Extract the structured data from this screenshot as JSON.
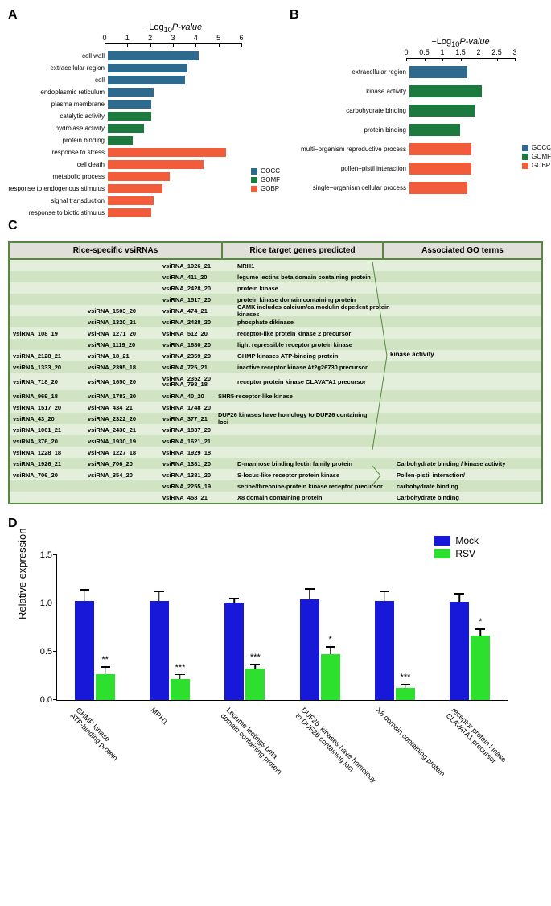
{
  "colors": {
    "gocc": "#2e6a8e",
    "gomf": "#1d7a3f",
    "gobp": "#f25c3b",
    "mock": "#1818d8",
    "rsv": "#2de02d",
    "table_border": "#578843",
    "table_bg1": "#e4efdb",
    "table_bg2": "#d0e3c3"
  },
  "panelA": {
    "label": "A",
    "axis_title": "−Log₁₀P-value",
    "xmax": 6,
    "xticks": [
      0,
      1,
      2,
      3,
      4,
      5,
      6
    ],
    "label_width": 120,
    "bar_area_width": 170,
    "bars": [
      {
        "label": "cell wall",
        "value": 4.0,
        "color": "#2e6a8e"
      },
      {
        "label": "extracellular region",
        "value": 3.5,
        "color": "#2e6a8e"
      },
      {
        "label": "cell",
        "value": 3.4,
        "color": "#2e6a8e"
      },
      {
        "label": "endoplasmic reticulum",
        "value": 2.0,
        "color": "#2e6a8e"
      },
      {
        "label": "plasma membrane",
        "value": 1.9,
        "color": "#2e6a8e"
      },
      {
        "label": "catalytic activity",
        "value": 1.9,
        "color": "#1d7a3f"
      },
      {
        "label": "hydrolase activity",
        "value": 1.6,
        "color": "#1d7a3f"
      },
      {
        "label": "protein binding",
        "value": 1.1,
        "color": "#1d7a3f"
      },
      {
        "label": "response to stress",
        "value": 5.2,
        "color": "#f25c3b"
      },
      {
        "label": "cell death",
        "value": 4.2,
        "color": "#f25c3b"
      },
      {
        "label": "metabolic process",
        "value": 2.7,
        "color": "#f25c3b"
      },
      {
        "label": "response to endogenous stimulus",
        "value": 2.4,
        "color": "#f25c3b"
      },
      {
        "label": "signal transduction",
        "value": 2.0,
        "color": "#f25c3b"
      },
      {
        "label": "response to biotic stimulus",
        "value": 1.9,
        "color": "#f25c3b"
      }
    ],
    "legend": [
      {
        "label": "GOCC",
        "color": "#2e6a8e"
      },
      {
        "label": "GOMF",
        "color": "#1d7a3f"
      },
      {
        "label": "GOBP",
        "color": "#f25c3b"
      }
    ]
  },
  "panelB": {
    "label": "B",
    "axis_title": "−Log₁₀P-value",
    "xmax": 3.0,
    "xticks": [
      0,
      0.5,
      1.0,
      1.5,
      2.0,
      2.5,
      3.0
    ],
    "label_width": 145,
    "bar_area_width": 135,
    "bars": [
      {
        "label": "extracellular region",
        "value": 1.6,
        "color": "#2e6a8e"
      },
      {
        "label": "kinase activity",
        "value": 2.0,
        "color": "#1d7a3f"
      },
      {
        "label": "carbohydrate binding",
        "value": 1.8,
        "color": "#1d7a3f"
      },
      {
        "label": "protein binding",
        "value": 1.4,
        "color": "#1d7a3f"
      },
      {
        "label": "multi−organism reproductive process",
        "value": 1.7,
        "color": "#f25c3b"
      },
      {
        "label": "pollen−pistil interaction",
        "value": 1.7,
        "color": "#f25c3b"
      },
      {
        "label": "single−organism cellular process",
        "value": 1.6,
        "color": "#f25c3b"
      }
    ],
    "legend": [
      {
        "label": "GOCC",
        "color": "#2e6a8e"
      },
      {
        "label": "GOMF",
        "color": "#1d7a3f"
      },
      {
        "label": "GOBP",
        "color": "#f25c3b"
      }
    ]
  },
  "panelC": {
    "label": "C",
    "headers": [
      "Rice-specific vsiRNAs",
      "Rice target genes predicted",
      "Associated GO terms"
    ],
    "col_widths": {
      "vs1": 85,
      "vs2": 85,
      "vs3": 85,
      "target": 190,
      "go": 200
    },
    "rows": [
      {
        "vs": [
          "",
          "",
          "vsiRNA_1926_21"
        ],
        "target": "MRH1"
      },
      {
        "vs": [
          "",
          "",
          "vsiRNA_411_20"
        ],
        "target": "legume lectins beta domain containing protein"
      },
      {
        "vs": [
          "",
          "",
          "vsiRNA_2428_20"
        ],
        "target": "protein kinase"
      },
      {
        "vs": [
          "",
          "",
          "vsiRNA_1517_20"
        ],
        "target": "protein kinase domain containing protein"
      },
      {
        "vs": [
          "",
          "vsiRNA_1503_20",
          "vsiRNA_474_21"
        ],
        "target": "CAMK includes calcium/calmodulin depedent protein kinases"
      },
      {
        "vs": [
          "",
          "vsiRNA_1320_21",
          "vsiRNA_2428_20"
        ],
        "target": "phosphate dikinase"
      },
      {
        "vs": [
          "vsiRNA_108_19",
          "vsiRNA_1271_20",
          "vsiRNA_512_20"
        ],
        "target": "receptor-like protein kinase 2 precursor"
      },
      {
        "vs": [
          "",
          "vsiRNA_1119_20",
          "vsiRNA_1680_20"
        ],
        "target": "light repressible receptor protein kinase"
      },
      {
        "vs": [
          "vsiRNA_2128_21",
          "vsiRNA_18_21",
          "vsiRNA_2359_20"
        ],
        "target": "GHMP kinases ATP-binding protein"
      },
      {
        "vs": [
          "vsiRNA_1333_20",
          "vsiRNA_2395_18",
          "vsiRNA_725_21"
        ],
        "target": "inactive receptor kinase At2g26730 precursor"
      },
      {
        "vs": [
          "vsiRNA_718_20",
          "vsiRNA_1650_20",
          "vsiRNA_2352_20 vsiRNA_798_18"
        ],
        "target": "receptor protein kinase CLAVATA1 precursor",
        "tall": true
      },
      {
        "vs": [
          "vsiRNA_969_18",
          "vsiRNA_1783_20",
          "vsiRNA_40_20"
        ],
        "target": "SHR5-receptor-like kinase",
        "merge": 2
      },
      {
        "vs": [
          "vsiRNA_1517_20",
          "vsiRNA_434_21",
          "vsiRNA_1748_20"
        ],
        "target": ""
      },
      {
        "vs": [
          "vsiRNA_43_20",
          "vsiRNA_2322_20",
          "vsiRNA_377_21"
        ],
        "target": "DUF26 kinases have homology to DUF26 containing loci",
        "merge": 4
      },
      {
        "vs": [
          "vsiRNA_1061_21",
          "vsiRNA_2430_21",
          "vsiRNA_1837_20"
        ],
        "target": ""
      },
      {
        "vs": [
          "vsiRNA_376_20",
          "vsiRNA_1930_19",
          "vsiRNA_1621_21"
        ],
        "target": ""
      },
      {
        "vs": [
          "vsiRNA_1228_18",
          "vsiRNA_1227_18",
          "vsiRNA_1929_18"
        ],
        "target": ""
      },
      {
        "vs": [
          "vsiRNA_1926_21",
          "vsiRNA_706_20",
          "vsiRNA_1381_20"
        ],
        "target": "D-mannose binding lectin family protein",
        "go": "Carbohydrate binding / kinase activity"
      },
      {
        "vs": [
          "vsiRNA_706_20",
          "vsiRNA_354_20",
          "vsiRNA_1381_20"
        ],
        "target": "S-locus-like receptor protein kinase",
        "go": "Pollen-pistil interaction/"
      },
      {
        "vs": [
          "",
          "",
          "vsiRNA_2255_19"
        ],
        "target": "serine/threonine-protein kinase receptor precursor",
        "go": "carbohydrate binding"
      },
      {
        "vs": [
          "",
          "",
          "vsiRNA_458_21"
        ],
        "target": "X8 domain containing protein",
        "go": "Carbohydrate binding"
      }
    ],
    "go_main": "kinase activity"
  },
  "panelD": {
    "label": "D",
    "ylabel": "Relative expression",
    "ymax": 1.5,
    "yticks": [
      0.0,
      0.5,
      1.0,
      1.5
    ],
    "legend": [
      {
        "label": "Mock",
        "color": "#1818d8"
      },
      {
        "label": "RSV",
        "color": "#2de02d"
      }
    ],
    "groups": [
      {
        "label": "GHMP kinase\nATP-binding protein",
        "mock": 1.03,
        "mock_err": 0.12,
        "rsv": 0.27,
        "rsv_err": 0.08,
        "sig": "**"
      },
      {
        "label": "MRH1",
        "mock": 1.03,
        "mock_err": 0.1,
        "rsv": 0.22,
        "rsv_err": 0.05,
        "sig": "***"
      },
      {
        "label": "Legume lectings beta\ndomain containing protein",
        "mock": 1.01,
        "mock_err": 0.05,
        "rsv": 0.33,
        "rsv_err": 0.05,
        "sig": "***"
      },
      {
        "label": "DUF26  kinases have homology\nto DUF26 containing loci",
        "mock": 1.04,
        "mock_err": 0.12,
        "rsv": 0.48,
        "rsv_err": 0.08,
        "sig": "*"
      },
      {
        "label": "X8 domain containing protein",
        "mock": 1.03,
        "mock_err": 0.1,
        "rsv": 0.13,
        "rsv_err": 0.04,
        "sig": "***"
      },
      {
        "label": "receptor protein kinase\nCLAVATA1 precursor",
        "mock": 1.02,
        "mock_err": 0.09,
        "rsv": 0.67,
        "rsv_err": 0.07,
        "sig": "*"
      }
    ]
  }
}
